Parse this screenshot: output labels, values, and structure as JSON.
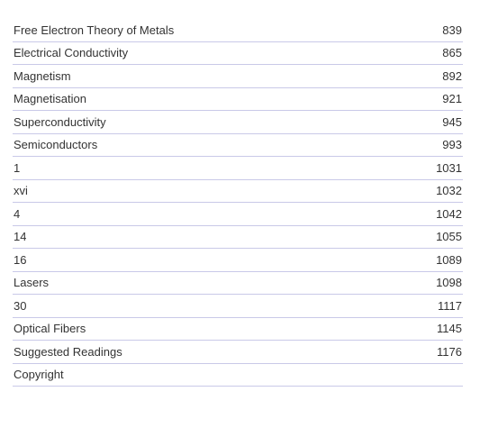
{
  "toc": {
    "entries": [
      {
        "title": "Free Electron Theory of Metals",
        "page": "839"
      },
      {
        "title": "Electrical Conductivity",
        "page": "865"
      },
      {
        "title": "Magnetism",
        "page": "892"
      },
      {
        "title": "Magnetisation",
        "page": "921"
      },
      {
        "title": "Superconductivity",
        "page": "945"
      },
      {
        "title": "Semiconductors",
        "page": "993"
      },
      {
        "title": "1",
        "page": "1031"
      },
      {
        "title": "xvi",
        "page": "1032"
      },
      {
        "title": "4",
        "page": "1042"
      },
      {
        "title": "14",
        "page": "1055"
      },
      {
        "title": "16",
        "page": "1089"
      },
      {
        "title": "Lasers",
        "page": "1098"
      },
      {
        "title": "30",
        "page": "1117"
      },
      {
        "title": "Optical Fibers",
        "page": "1145"
      },
      {
        "title": "Suggested Readings",
        "page": "1176"
      },
      {
        "title": "Copyright",
        "page": ""
      }
    ]
  }
}
